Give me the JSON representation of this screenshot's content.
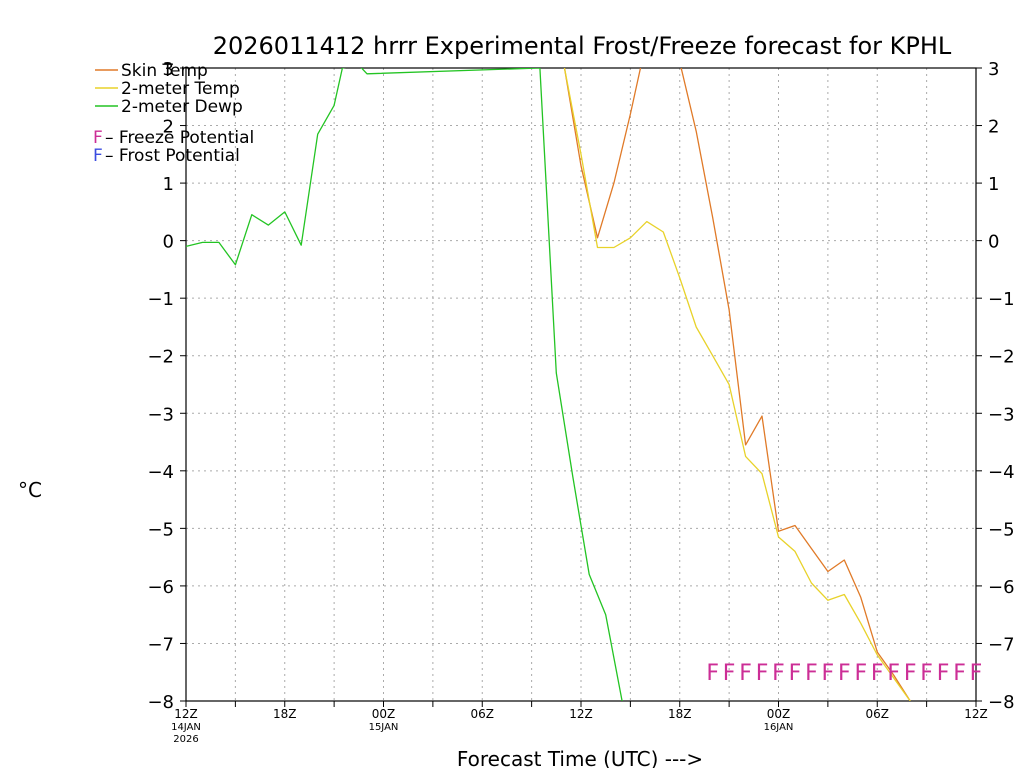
{
  "chart_data": {
    "type": "line",
    "title": "2026011412 hrrr Experimental Frost/Freeze forecast for KPHL",
    "ylabel_unit": "°C",
    "xlabel": "Forecast Time (UTC) --->",
    "ylim": [
      -8,
      3
    ],
    "xlim": [
      0,
      48
    ],
    "yticks": [
      3,
      2,
      1,
      0,
      -1,
      -2,
      -3,
      -4,
      -5,
      -6,
      -7,
      -8
    ],
    "ytick_labels": [
      "3",
      "2",
      "1",
      "0",
      "−1",
      "−2",
      "−3",
      "−4",
      "−5",
      "−6",
      "−7",
      "−8"
    ],
    "xticks": [
      {
        "hour": 0,
        "label": "12Z",
        "sub1": "14JAN",
        "sub2": "2026"
      },
      {
        "hour": 6,
        "label": "18Z",
        "sub1": "",
        "sub2": ""
      },
      {
        "hour": 12,
        "label": "00Z",
        "sub1": "15JAN",
        "sub2": ""
      },
      {
        "hour": 18,
        "label": "06Z",
        "sub1": "",
        "sub2": ""
      },
      {
        "hour": 24,
        "label": "12Z",
        "sub1": "",
        "sub2": ""
      },
      {
        "hour": 30,
        "label": "18Z",
        "sub1": "",
        "sub2": ""
      },
      {
        "hour": 36,
        "label": "00Z",
        "sub1": "16JAN",
        "sub2": ""
      },
      {
        "hour": 42,
        "label": "06Z",
        "sub1": "",
        "sub2": ""
      },
      {
        "hour": 48,
        "label": "12Z",
        "sub1": "",
        "sub2": ""
      }
    ],
    "series": [
      {
        "name": "Skin Temp",
        "color": "#e07a28",
        "x": [
          23,
          24,
          25,
          26,
          27,
          28,
          29,
          30,
          31,
          32,
          33,
          34,
          35,
          36,
          37,
          38,
          39,
          40,
          41,
          42,
          43,
          44
        ],
        "values": [
          3.0,
          1.3,
          0.05,
          1.0,
          2.2,
          3.5,
          3.8,
          3.1,
          1.9,
          0.4,
          -1.2,
          -3.55,
          -3.05,
          -5.05,
          -4.95,
          -5.35,
          -5.75,
          -5.55,
          -6.2,
          -7.15,
          -7.55,
          -8.0
        ]
      },
      {
        "name": "2-meter Temp",
        "color": "#e8d22a",
        "x": [
          23,
          24,
          25,
          26,
          27,
          28,
          29,
          30,
          31,
          32,
          33,
          34,
          35,
          36,
          37,
          38,
          39,
          40,
          41,
          42,
          43,
          44
        ],
        "values": [
          3.0,
          1.5,
          -0.12,
          -0.12,
          0.05,
          0.33,
          0.15,
          -0.65,
          -1.5,
          -2.0,
          -2.5,
          -3.75,
          -4.05,
          -5.15,
          -5.4,
          -5.95,
          -6.25,
          -6.15,
          -6.65,
          -7.2,
          -7.6,
          -8.0
        ]
      },
      {
        "name": "2-meter Dewp",
        "color": "#23c423",
        "x": [
          0,
          1,
          2,
          3,
          4,
          5,
          6,
          7,
          8,
          9,
          9.5,
          10.5,
          11,
          21.5,
          22.5,
          23.5,
          24.5,
          25.5,
          26.5
        ],
        "values": [
          -0.1,
          -0.03,
          -0.03,
          -0.42,
          0.45,
          0.27,
          0.5,
          -0.08,
          1.85,
          2.35,
          3.0,
          3.05,
          2.9,
          3.0,
          -2.3,
          -4.1,
          -5.8,
          -6.5,
          -8.0
        ]
      }
    ],
    "legend": [
      {
        "name": "Skin Temp",
        "color": "#e07a28"
      },
      {
        "name": "2-meter Temp",
        "color": "#e8d22a"
      },
      {
        "name": "2-meter Dewp",
        "color": "#23c423"
      }
    ],
    "annotations": [
      {
        "marker": "F",
        "text": " – Freeze Potential",
        "color": "#cc2e96"
      },
      {
        "marker": "F",
        "text": " – Frost Potential",
        "color": "#3b4ce0"
      }
    ],
    "freeze_marks": {
      "marker": "F",
      "color": "#cc2e96",
      "value": -7.5,
      "hours": [
        32,
        33,
        34,
        35,
        36,
        37,
        38,
        39,
        40,
        41,
        42,
        43,
        44,
        45,
        46,
        47,
        48
      ]
    }
  }
}
